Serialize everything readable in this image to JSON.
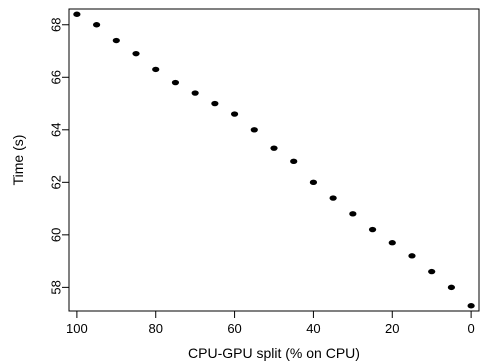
{
  "chart_data": {
    "type": "scatter",
    "xlabel": "CPU-GPU split (% on CPU)",
    "ylabel": "Time (s)",
    "x_reversed": true,
    "xlim": [
      102,
      -2
    ],
    "ylim": [
      57.1,
      68.6
    ],
    "xticks": [
      100,
      80,
      60,
      40,
      20,
      0
    ],
    "yticks": [
      58,
      60,
      62,
      64,
      66,
      68
    ],
    "grid": false,
    "marker_color": "#000000",
    "points": [
      {
        "x": 100,
        "y": 68.4
      },
      {
        "x": 95,
        "y": 68.0
      },
      {
        "x": 90,
        "y": 67.4
      },
      {
        "x": 85,
        "y": 66.9
      },
      {
        "x": 80,
        "y": 66.3
      },
      {
        "x": 75,
        "y": 65.8
      },
      {
        "x": 70,
        "y": 65.4
      },
      {
        "x": 65,
        "y": 65.0
      },
      {
        "x": 60,
        "y": 64.6
      },
      {
        "x": 55,
        "y": 64.0
      },
      {
        "x": 50,
        "y": 63.3
      },
      {
        "x": 45,
        "y": 62.8
      },
      {
        "x": 40,
        "y": 62.0
      },
      {
        "x": 35,
        "y": 61.4
      },
      {
        "x": 30,
        "y": 60.8
      },
      {
        "x": 25,
        "y": 60.2
      },
      {
        "x": 20,
        "y": 59.7
      },
      {
        "x": 15,
        "y": 59.2
      },
      {
        "x": 10,
        "y": 58.6
      },
      {
        "x": 5,
        "y": 58.0
      },
      {
        "x": 0,
        "y": 57.3
      }
    ]
  }
}
